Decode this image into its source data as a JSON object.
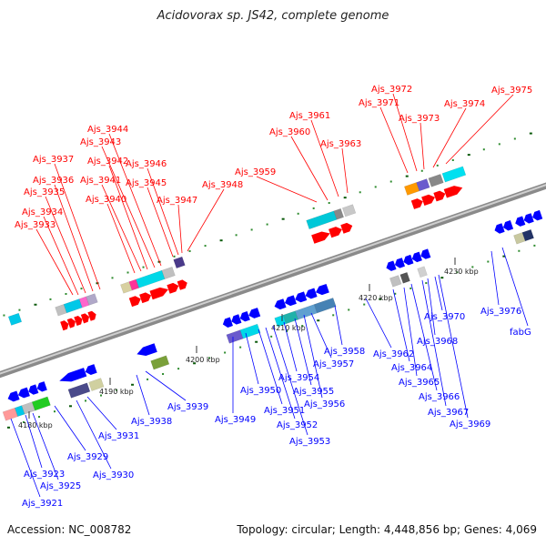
{
  "title": "Acidovorax sp. JS42, complete genome",
  "footer": {
    "accession": "Accession: NC_008782",
    "summary": "Topology: circular; Length: 4,448,856 bp; Genes: 4,069"
  },
  "colors": {
    "forward": "#ff0000",
    "reverse": "#0000ff",
    "axis": "#999999",
    "tick": "#1a7a1a"
  },
  "ticks": [
    "4180 kbp",
    "4190 kbp",
    "4200 kbp",
    "4210 kbp",
    "4220 kbp",
    "4230 kbp"
  ],
  "forward_labels": [
    "Ajs_3933",
    "Ajs_3934",
    "Ajs_3935",
    "Ajs_3936",
    "Ajs_3937",
    "Ajs_3940",
    "Ajs_3941",
    "Ajs_3942",
    "Ajs_3943",
    "Ajs_3944",
    "Ajs_3945",
    "Ajs_3946",
    "Ajs_3947",
    "Ajs_3948",
    "Ajs_3959",
    "Ajs_3960",
    "Ajs_3961",
    "Ajs_3963",
    "Ajs_3971",
    "Ajs_3972",
    "Ajs_3973",
    "Ajs_3974",
    "Ajs_3975"
  ],
  "reverse_labels": [
    "Ajs_3921",
    "Ajs_3923",
    "Ajs_3925",
    "Ajs_3929",
    "Ajs_3930",
    "Ajs_3931",
    "Ajs_3938",
    "Ajs_3939",
    "Ajs_3949",
    "Ajs_3950",
    "Ajs_3951",
    "Ajs_3952",
    "Ajs_3953",
    "Ajs_3954",
    "Ajs_3955",
    "Ajs_3956",
    "Ajs_3957",
    "Ajs_3958",
    "Ajs_3962",
    "Ajs_3964",
    "Ajs_3965",
    "Ajs_3966",
    "Ajs_3967",
    "Ajs_3968",
    "Ajs_3969",
    "Ajs_3970",
    "Ajs_3976",
    "fabG"
  ]
}
